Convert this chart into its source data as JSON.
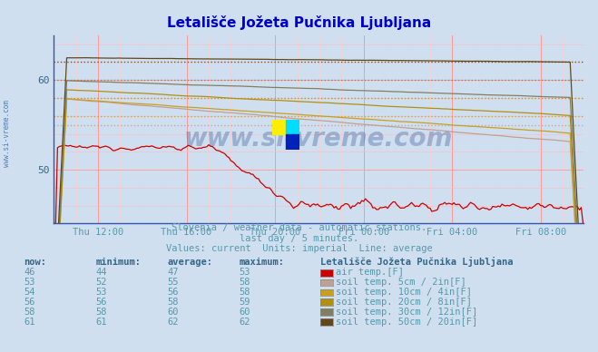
{
  "title": "Letališče Jožeta Pučnika Ljubljana",
  "title_color": "#0000cc",
  "bg_color": "#d0dff0",
  "plot_bg_color": "#d0dff0",
  "x_labels": [
    "Thu 12:00",
    "Thu 16:00",
    "Thu 20:00",
    "Fri 00:00",
    "Fri 04:00",
    "Fri 08:00"
  ],
  "ylim_min": 44,
  "ylim_max": 65,
  "ytick_vals": [
    50,
    60
  ],
  "ytick_labels": [
    "50",
    "60"
  ],
  "grid_vcolor": "#ff8888",
  "grid_hcolor": "#ffaaaa",
  "subtitle1": "Slovenia / weather data - automatic stations.",
  "subtitle2": "last day / 5 minutes.",
  "subtitle3": "Values: current  Units: imperial  Line: average",
  "subtitle_color": "#5599aa",
  "legend_title": "Letališče Jožeta Pučnika Ljubljana",
  "series": [
    {
      "label": "air temp.[F]",
      "color": "#cc0000",
      "avg": 47,
      "now": 46,
      "min": 44,
      "max": 53
    },
    {
      "label": "soil temp. 5cm / 2in[F]",
      "color": "#c0a090",
      "avg": 55,
      "now": 53,
      "min": 52,
      "max": 58
    },
    {
      "label": "soil temp. 10cm / 4in[F]",
      "color": "#c8a020",
      "avg": 56,
      "now": 54,
      "min": 53,
      "max": 58
    },
    {
      "label": "soil temp. 20cm / 8in[F]",
      "color": "#b09010",
      "avg": 58,
      "now": 56,
      "min": 56,
      "max": 59
    },
    {
      "label": "soil temp. 30cm / 12in[F]",
      "color": "#808060",
      "avg": 60,
      "now": 58,
      "min": 58,
      "max": 60
    },
    {
      "label": "soil temp. 50cm / 20in[F]",
      "color": "#604818",
      "avg": 62,
      "now": 61,
      "min": 61,
      "max": 62
    }
  ],
  "table_header_color": "#336688",
  "table_value_color": "#5599aa",
  "watermark": "www.si-vreme.com",
  "watermark_color": "#1a4488",
  "left_label": "www.si-vreme.com"
}
